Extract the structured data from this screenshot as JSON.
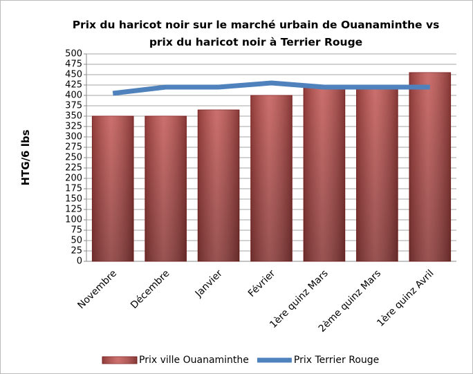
{
  "chart_data": {
    "type": "bar",
    "title": "Prix du haricot noir sur le marché urbain de Ouanaminthe vs prix du haricot noir à Terrier Rouge",
    "y_label": "HTG/6 lbs",
    "categories": [
      "Novembre",
      "Décembre",
      "Janvier",
      "Février",
      "1ère quinz Mars",
      "2ème quinz Mars",
      "1ère quinz Avril"
    ],
    "series": [
      {
        "name": "Prix ville Ouanaminthe",
        "type": "bar",
        "color": "#c0504d",
        "values": [
          350,
          350,
          365,
          400,
          420,
          420,
          455
        ]
      },
      {
        "name": "Prix Terrier Rouge",
        "type": "line",
        "color": "#4f81bd",
        "values": [
          405,
          420,
          420,
          430,
          420,
          420,
          420
        ]
      }
    ],
    "ylim": [
      0,
      500
    ],
    "yticks": [
      0,
      25,
      50,
      75,
      100,
      125,
      150,
      175,
      200,
      225,
      250,
      275,
      300,
      325,
      350,
      375,
      400,
      425,
      450,
      475,
      500
    ],
    "grid": true,
    "legend": "bottom"
  }
}
